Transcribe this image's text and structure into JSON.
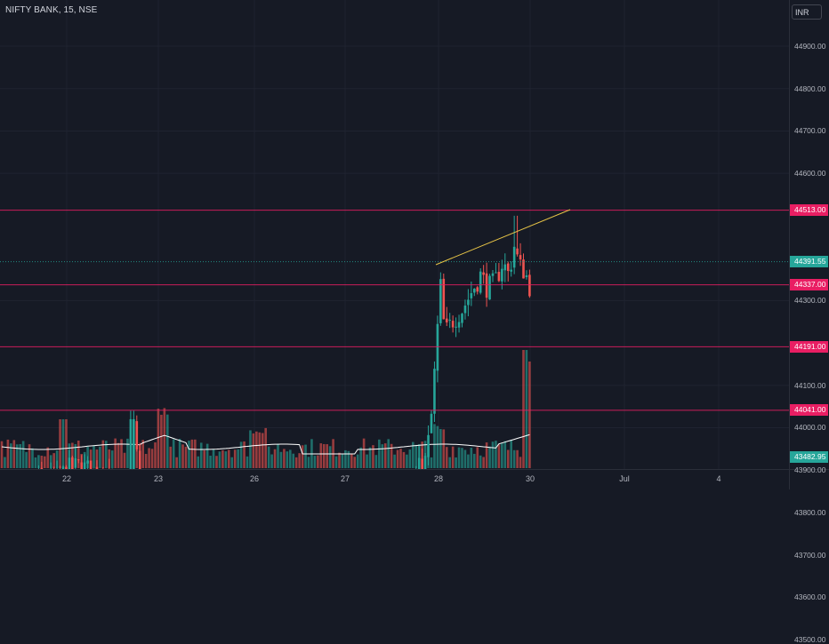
{
  "header": {
    "symbol": "NIFTY BANK, 15, NSE",
    "currency": "INR"
  },
  "price_axis": {
    "ticks": [
      "44900.00",
      "44800.00",
      "44700.00",
      "44600.00",
      "44300.00",
      "44100.00",
      "44000.00",
      "43900.00",
      "43800.00",
      "43700.00",
      "43600.00",
      "43500.00"
    ],
    "tick_values": [
      44900,
      44800,
      44700,
      44600,
      44300,
      44100,
      44000,
      43900,
      43800,
      43700,
      43600,
      43500
    ]
  },
  "time_axis": {
    "labels": [
      "22",
      "23",
      "26",
      "27",
      "28",
      "30",
      "Jul",
      "4"
    ]
  },
  "price_badges": [
    {
      "label": "44513.00",
      "value": 44513,
      "style": "red"
    },
    {
      "label": "44391.55",
      "value": 44391.55,
      "style": "green"
    },
    {
      "label": "44337.00",
      "value": 44337,
      "style": "red"
    },
    {
      "label": "44191.00",
      "value": 44191,
      "style": "red"
    },
    {
      "label": "44041.00",
      "value": 44041,
      "style": "red"
    },
    {
      "label": "43482.95",
      "value": 43482.95,
      "style": "green"
    }
  ],
  "horizontal_levels": [
    44513,
    44337,
    44191,
    44041
  ],
  "last_price": 44391.55,
  "volume_ma_label": "43482.95",
  "colors": {
    "background": "#161a25",
    "up": "#26a69a",
    "down": "#ef5350",
    "level_line": "#e91e63",
    "trendline": "#e8c547",
    "grid": "#1f2330",
    "volume_ma": "#ffffff"
  }
}
